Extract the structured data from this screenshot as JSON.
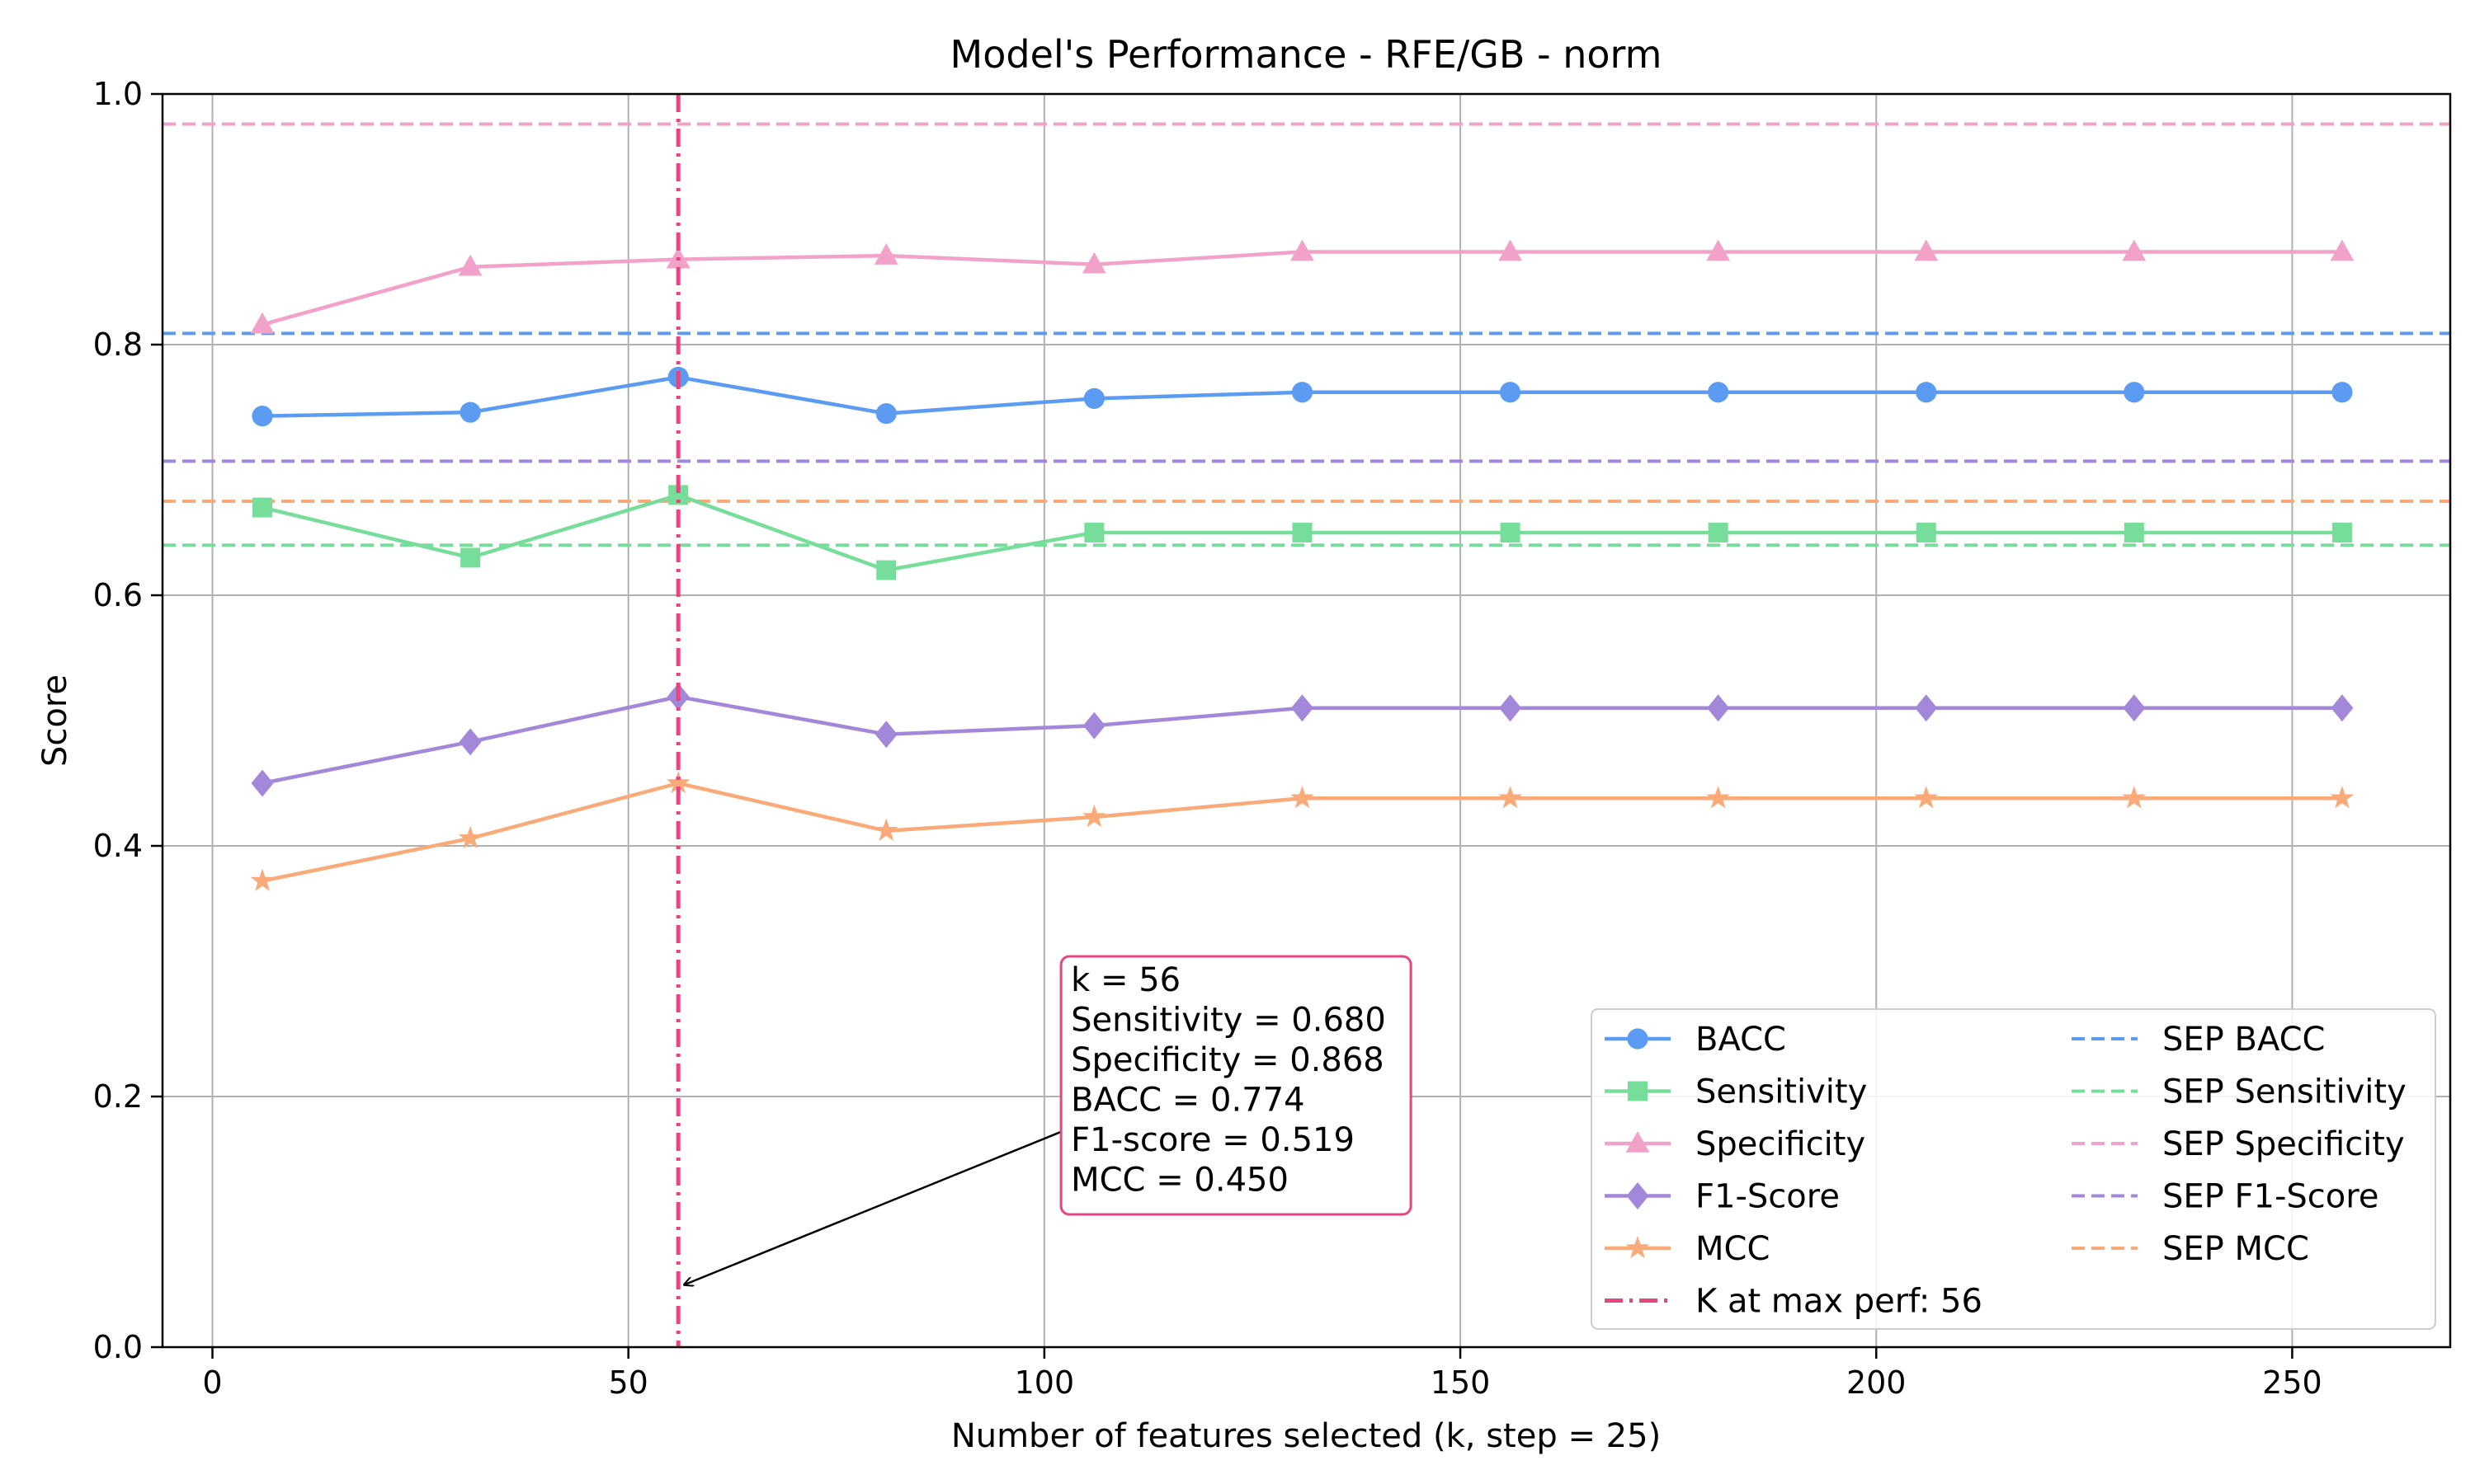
{
  "chart_data": {
    "type": "line",
    "title": "Model's Performance - RFE/GB - norm",
    "xlabel": "Number of features selected (k, step = 25)",
    "ylabel": "Score",
    "xlim": [
      -6,
      269
    ],
    "ylim": [
      0.0,
      1.0
    ],
    "xticks": [
      0,
      50,
      100,
      150,
      200,
      250
    ],
    "yticks": [
      0.0,
      0.2,
      0.4,
      0.6,
      0.8,
      1.0
    ],
    "ytick_labels": [
      "0.0",
      "0.2",
      "0.4",
      "0.6",
      "0.8",
      "1.0"
    ],
    "grid": true,
    "x": [
      6,
      31,
      56,
      81,
      106,
      131,
      156,
      181,
      206,
      231,
      256
    ],
    "series": [
      {
        "name": "BACC",
        "color": "#5b9cf2",
        "marker": "circle",
        "values": [
          0.743,
          0.746,
          0.774,
          0.745,
          0.757,
          0.762,
          0.762,
          0.762,
          0.762,
          0.762,
          0.762
        ]
      },
      {
        "name": "Sensitivity",
        "color": "#77dd9a",
        "marker": "square",
        "values": [
          0.67,
          0.63,
          0.68,
          0.62,
          0.65,
          0.65,
          0.65,
          0.65,
          0.65,
          0.65,
          0.65
        ]
      },
      {
        "name": "Specificity",
        "color": "#f2a2c8",
        "marker": "triangle",
        "values": [
          0.816,
          0.862,
          0.868,
          0.871,
          0.864,
          0.874,
          0.874,
          0.874,
          0.874,
          0.874,
          0.874
        ]
      },
      {
        "name": "F1-Score",
        "color": "#a388d9",
        "marker": "diamond",
        "values": [
          0.45,
          0.483,
          0.519,
          0.489,
          0.496,
          0.51,
          0.51,
          0.51,
          0.51,
          0.51,
          0.51
        ]
      },
      {
        "name": "MCC",
        "color": "#f9aa78",
        "marker": "star",
        "values": [
          0.372,
          0.406,
          0.45,
          0.412,
          0.423,
          0.438,
          0.438,
          0.438,
          0.438,
          0.438,
          0.438
        ]
      }
    ],
    "reference_lines": [
      {
        "name": "SEP BACC",
        "color": "#5b9cf2",
        "value": 0.809
      },
      {
        "name": "SEP Sensitivity",
        "color": "#77dd9a",
        "value": 0.64
      },
      {
        "name": "SEP Specificity",
        "color": "#f2a2c8",
        "value": 0.976
      },
      {
        "name": "SEP F1-Score",
        "color": "#a388d9",
        "value": 0.707
      },
      {
        "name": "SEP MCC",
        "color": "#f9aa78",
        "value": 0.675
      }
    ],
    "vline": {
      "name": "K at max perf: 56",
      "color": "#e8457f",
      "x": 56
    },
    "annotation": {
      "lines": [
        "k = 56",
        "Sensitivity = 0.680",
        "Specificity = 0.868",
        "BACC = 0.774",
        "F1-score = 0.519",
        "MCC = 0.450"
      ],
      "border_color": "#e8457f",
      "text_anchor": {
        "x": 103,
        "y": 0.3
      },
      "arrow_target": {
        "x": 56,
        "y": 0.05
      }
    },
    "legend": {
      "placement": "lower-right",
      "columns": 2,
      "entries": [
        "BACC",
        "Sensitivity",
        "Specificity",
        "F1-Score",
        "MCC",
        "K at max perf: 56",
        "SEP BACC",
        "SEP Sensitivity",
        "SEP Specificity",
        "SEP F1-Score",
        "SEP MCC"
      ]
    }
  }
}
